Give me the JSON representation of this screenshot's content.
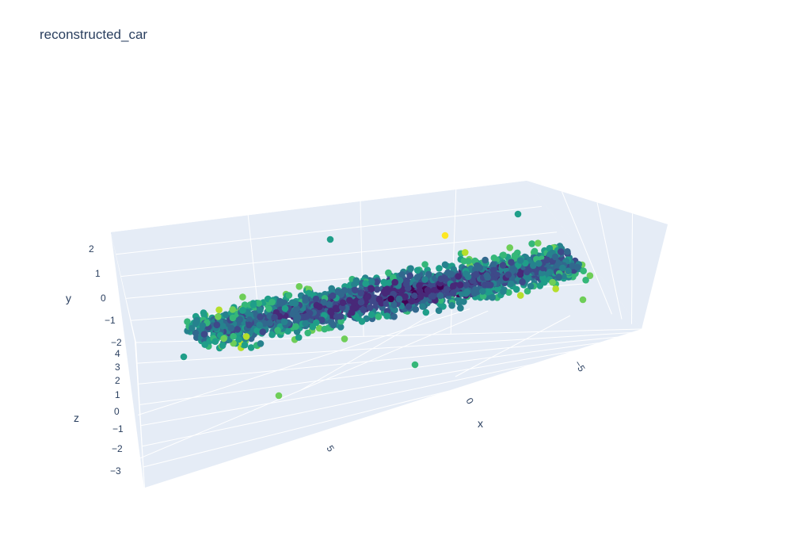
{
  "chart_data": {
    "type": "scatter",
    "subtype": "scatter3d",
    "title": "reconstructed_car",
    "colorscale": "viridis",
    "axes": {
      "x": {
        "label": "x",
        "ticks": [
          "5",
          "0",
          "-5"
        ]
      },
      "y": {
        "label": "y",
        "ticks": [
          "2",
          "1",
          "0",
          "-1",
          "-2"
        ]
      },
      "z": {
        "label": "z",
        "ticks": [
          "4",
          "3",
          "2",
          "1",
          "0",
          "-1",
          "-2",
          "-3"
        ]
      }
    },
    "point_count_estimate": 1800,
    "colors": {
      "background": "#e5ecf6",
      "grid": "#ffffff",
      "text": "#2a3f5f"
    }
  }
}
